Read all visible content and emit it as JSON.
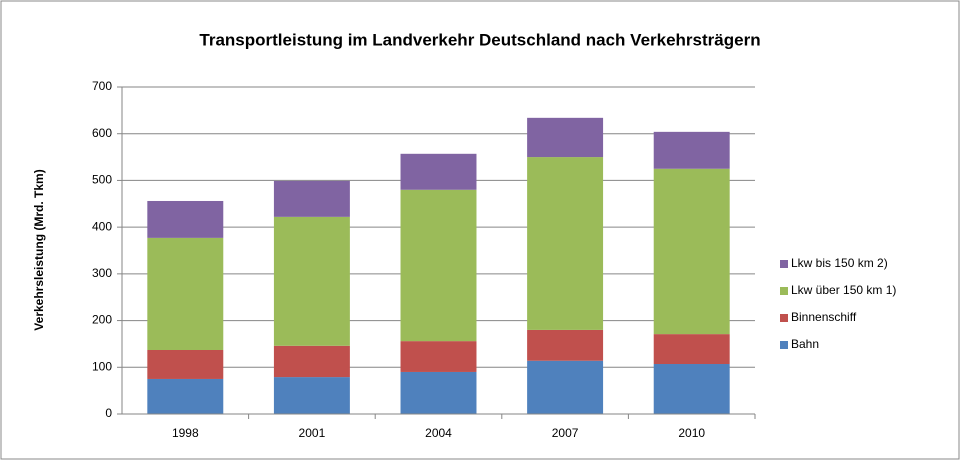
{
  "chart_data": {
    "type": "stacked_bar",
    "title": "Transportleistung im Landverkehr Deutschland nach Verkehrsträgern",
    "y_axis_label": "Verkehrsleistung (Mrd. Tkm)",
    "categories": [
      "1998",
      "2001",
      "2004",
      "2007",
      "2010"
    ],
    "series": [
      {
        "name": "Bahn",
        "color": "#4f81bd",
        "values": [
          75,
          79,
          90,
          114,
          107
        ]
      },
      {
        "name": "Binnenschiff",
        "color": "#c0504d",
        "values": [
          62,
          67,
          66,
          66,
          64
        ]
      },
      {
        "name": "Lkw über 150 km 1)",
        "color": "#9bbb59",
        "values": [
          240,
          276,
          324,
          370,
          354
        ]
      },
      {
        "name": "Lkw bis 150 km 2)",
        "color": "#8064a2",
        "values": [
          79,
          77,
          77,
          84,
          79
        ]
      }
    ],
    "ylim": [
      0,
      700
    ],
    "yticks": [
      0,
      100,
      200,
      300,
      400,
      500,
      600,
      700
    ],
    "grid": true,
    "legend": "right"
  }
}
